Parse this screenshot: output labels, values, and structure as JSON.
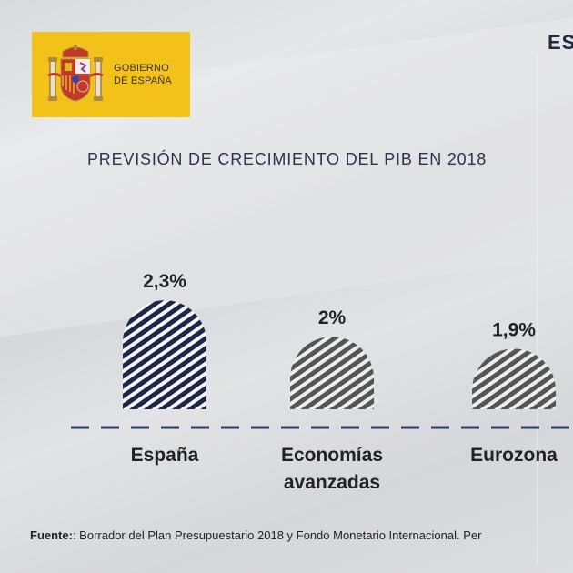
{
  "header": {
    "logo_line1": "GOBIERNO",
    "logo_line2": "DE ESPAÑA",
    "corner_text": "ES",
    "logo_color": "#f2c21b"
  },
  "footer": {
    "label": "Fuente:",
    "text": ": Borrador del Plan Presupuestario 2018 y Fondo Monetario Internacional. Per"
  },
  "chart_data": {
    "type": "bar",
    "title": "PREVISIÓN DE CRECIMIENTO DEL PIB EN 2018",
    "categories": [
      "España",
      [
        "Economías",
        "avanzadas"
      ],
      "Eurozona"
    ],
    "values": [
      2.3,
      2.0,
      1.9
    ],
    "value_labels": [
      "2,3%",
      "2%",
      "1,9%"
    ],
    "unit": "%",
    "xlabel": "",
    "ylabel": "",
    "grid": false,
    "legend": "none",
    "colors": [
      "#1e2747",
      "#555555",
      "#555555"
    ],
    "baseline_color": "#2c3a5e"
  }
}
